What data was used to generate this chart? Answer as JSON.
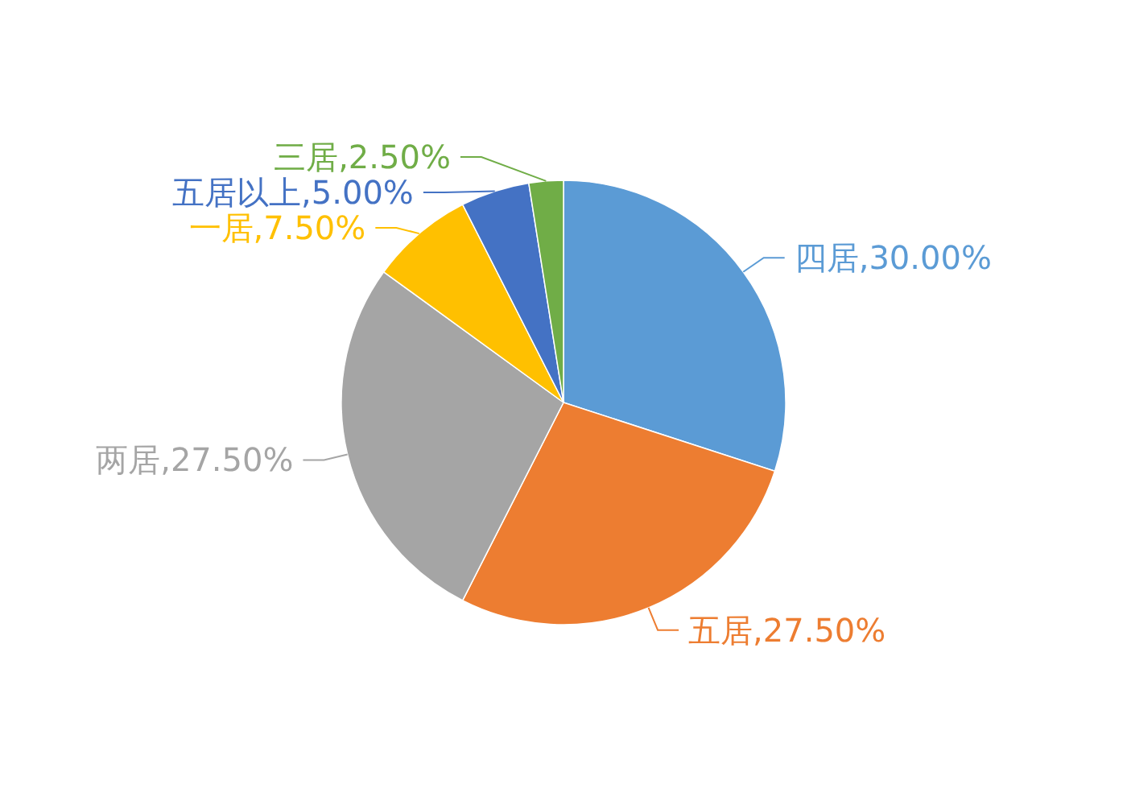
{
  "chart_data": {
    "type": "pie",
    "categories": [
      "四居",
      "五居",
      "两居",
      "一居",
      "五居以上",
      "三居"
    ],
    "values": [
      30,
      27.5,
      27.5,
      7.5,
      5,
      2.5
    ],
    "colors": [
      "#5b9bd5",
      "#ed7d31",
      "#a5a5a5",
      "#ffc000",
      "#4472c4",
      "#70ad47"
    ],
    "value_labels": [
      "30.00%",
      "27.50%",
      "27.50%",
      "7.50%",
      "5.00%",
      "2.50%"
    ]
  }
}
